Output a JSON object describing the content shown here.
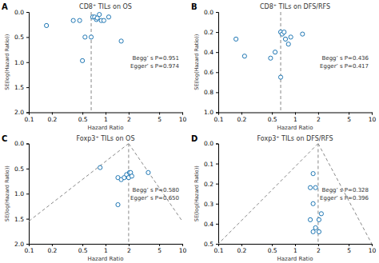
{
  "chart_data": [
    {
      "type": "scatter",
      "panel_label": "A",
      "title": "CD8⁺ TILs on OS",
      "xlabel": "Hazard Ratio",
      "ylabel": "SE(log(Hazard Ratio))",
      "annotations": [
        "Begg’ s P=0.951",
        "Egger’ s P=0.974"
      ],
      "x": [
        0.17,
        0.38,
        0.46,
        0.54,
        0.65,
        0.68,
        0.72,
        0.76,
        0.78,
        0.83,
        0.88,
        0.95,
        1.1,
        1.6,
        0.5
      ],
      "y": [
        0.27,
        0.17,
        0.17,
        0.5,
        0.5,
        0.1,
        0.1,
        0.15,
        0.12,
        0.05,
        0.17,
        0.17,
        0.1,
        0.58,
        0.97
      ],
      "vline": 0.65,
      "xlim": [
        0.1,
        10
      ],
      "ylim": [
        2.0,
        0
      ],
      "xticks": [
        0.1,
        0.2,
        0.5,
        1,
        2,
        5,
        10
      ],
      "yticks": [
        {
          "value": 0,
          "label": "0.0"
        },
        {
          "value": 0.5,
          "label": "0.5"
        },
        {
          "value": 1.0,
          "label": "1.0"
        },
        {
          "value": 1.5,
          "label": "1.5"
        },
        {
          "value": 2.0,
          "label": "2.0"
        }
      ],
      "log": "x",
      "grid": false
    },
    {
      "type": "scatter",
      "panel_label": "B",
      "title": "CD8⁺ TILs on DFS/RFS",
      "xlabel": "Hazard Ratio",
      "ylabel": "SE(log(Hazard Ratio))",
      "annotations": [
        "Begg’ s P=0.436",
        "Egger’ s P=0.417"
      ],
      "x": [
        0.17,
        0.22,
        0.48,
        0.55,
        0.65,
        0.68,
        0.72,
        0.75,
        0.82,
        0.88,
        1.25,
        0.65
      ],
      "y": [
        0.27,
        0.44,
        0.46,
        0.4,
        0.2,
        0.22,
        0.2,
        0.27,
        0.32,
        0.25,
        0.22,
        0.65
      ],
      "vline": 0.65,
      "xlim": [
        0.1,
        10
      ],
      "ylim": [
        1.0,
        0
      ],
      "xticks": [
        0.1,
        0.2,
        0.5,
        1,
        2,
        5,
        10
      ],
      "yticks": [
        {
          "value": 0,
          "label": "0.0"
        },
        {
          "value": 0.2,
          "label": "0.2"
        },
        {
          "value": 0.4,
          "label": "0.4"
        },
        {
          "value": 0.6,
          "label": "0.6"
        },
        {
          "value": 0.8,
          "label": "0.8"
        },
        {
          "value": 1.0,
          "label": "1.0"
        }
      ],
      "log": "x",
      "grid": false
    },
    {
      "type": "scatter",
      "panel_label": "C",
      "title": "Foxp3⁺ TILs on OS",
      "xlabel": "Hazard Ratio",
      "ylabel": "SE(log(Hazard Ratio))",
      "annotations": [
        "Begg’ s P=0.580",
        "Egger’ s P=0.650"
      ],
      "x": [
        0.85,
        1.45,
        1.6,
        1.75,
        1.88,
        2.0,
        2.05,
        2.12,
        2.2,
        3.6,
        1.45
      ],
      "y": [
        0.48,
        0.68,
        0.72,
        0.68,
        0.62,
        0.68,
        0.58,
        0.58,
        0.65,
        0.58,
        1.22
      ],
      "vline": 2.0,
      "funnel_apex": [
        2.0,
        0.0
      ],
      "funnel_left": [
        0.1,
        1.55
      ],
      "funnel_right": [
        10.0,
        1.55
      ],
      "xlim": [
        0.1,
        10
      ],
      "ylim": [
        2.0,
        0
      ],
      "xticks": [
        0.1,
        0.2,
        0.5,
        1,
        2,
        5,
        10
      ],
      "yticks": [
        {
          "value": 0,
          "label": "0.0"
        },
        {
          "value": 0.5,
          "label": "0.5"
        },
        {
          "value": 1.0,
          "label": "1.0"
        },
        {
          "value": 1.5,
          "label": "1.5"
        },
        {
          "value": 2.0,
          "label": "2.0"
        }
      ],
      "log": "x",
      "grid": false
    },
    {
      "type": "scatter",
      "panel_label": "D",
      "title": "Foxp3⁺ TILs on DFS/RFS",
      "xlabel": "Hazard Ratio",
      "ylabel": "SE(log(Hazard Ratio))",
      "annotations": [
        "Begg’ s P=0.328",
        "Egger’ s P=0.396"
      ],
      "x": [
        1.72,
        1.58,
        1.85,
        1.72,
        1.58,
        2.05,
        1.85,
        2.2,
        1.72,
        2.05
      ],
      "y": [
        0.15,
        0.22,
        0.22,
        0.3,
        0.38,
        0.38,
        0.42,
        0.35,
        0.44,
        0.44
      ],
      "vline": 2.0,
      "funnel_apex": [
        2.0,
        0.0
      ],
      "funnel_left": [
        0.1,
        0.5
      ],
      "funnel_right": [
        10.0,
        0.5
      ],
      "xlim": [
        0.1,
        10
      ],
      "ylim": [
        0.5,
        0
      ],
      "xticks": [
        0.1,
        0.2,
        0.5,
        1,
        2,
        5,
        10
      ],
      "yticks": [
        {
          "value": 0,
          "label": "0.0"
        },
        {
          "value": 0.1,
          "label": "0.1"
        },
        {
          "value": 0.2,
          "label": "0.2"
        },
        {
          "value": 0.3,
          "label": "0.3"
        },
        {
          "value": 0.4,
          "label": "0.4"
        },
        {
          "value": 0.5,
          "label": "0.5"
        }
      ],
      "log": "x",
      "grid": false
    }
  ]
}
